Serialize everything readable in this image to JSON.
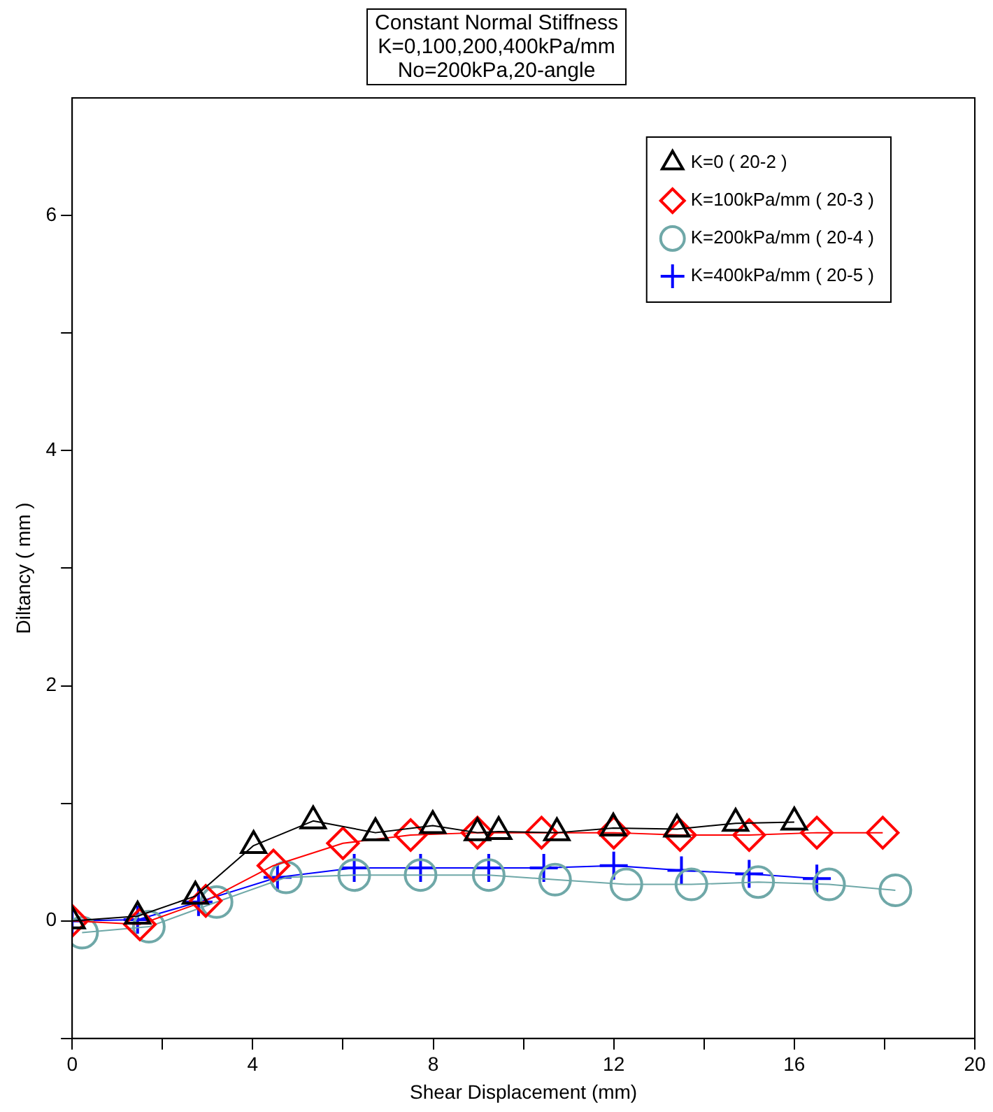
{
  "chart_data": {
    "type": "line",
    "title": "Constant Normal Stiffness\nK=0,100,200,400kPa/mm\nNo=200kPa,20-angle",
    "xlabel": "Shear Displacement (mm)",
    "ylabel": "Diltancy ( mm )",
    "xlim": [
      0,
      20
    ],
    "xticks": [
      0,
      {
        "value": 2,
        "label": null
      },
      4,
      {
        "value": 6,
        "label": null
      },
      8,
      {
        "value": 10,
        "label": null
      },
      12,
      {
        "value": 14,
        "label": null
      },
      16,
      {
        "value": 18,
        "label": null
      },
      20
    ],
    "ylim": [
      -1,
      7
    ],
    "yticks": [
      {
        "value": -1,
        "label": null
      },
      0,
      {
        "value": 1,
        "label": null
      },
      2,
      {
        "value": 3,
        "label": null
      },
      4,
      {
        "value": 5,
        "label": null
      },
      6
    ],
    "grid": false,
    "legend": "top right",
    "line_style": "solid",
    "series": [
      {
        "name": "K=0 ( 20-2 )",
        "color": "#000000",
        "marker": "triangle",
        "x": [
          0,
          1.45,
          2.73,
          4.02,
          5.34,
          6.72,
          7.99,
          8.98,
          9.45,
          10.74,
          11.99,
          13.4,
          14.7,
          16.0
        ],
        "values": [
          0,
          0.04,
          0.21,
          0.64,
          0.85,
          0.75,
          0.81,
          0.75,
          0.76,
          0.75,
          0.79,
          0.78,
          0.83,
          0.84
        ]
      },
      {
        "name": "K=100kPa/mm ( 20-3 )",
        "color": "#ff0000",
        "marker": "diamond",
        "x": [
          0,
          1.5,
          2.96,
          4.46,
          6.0,
          7.5,
          8.98,
          10.4,
          12.0,
          13.47,
          15.0,
          16.5,
          17.96
        ],
        "values": [
          0,
          -0.03,
          0.17,
          0.47,
          0.66,
          0.73,
          0.75,
          0.75,
          0.75,
          0.73,
          0.73,
          0.75,
          0.75
        ]
      },
      {
        "name": "K=200kPa/mm ( 20-4 )",
        "color": "#6fa8a8",
        "marker": "circle",
        "x": [
          0.22,
          1.7,
          3.2,
          4.74,
          6.25,
          7.72,
          9.23,
          10.7,
          12.28,
          13.72,
          15.2,
          16.77,
          18.24
        ],
        "values": [
          -0.1,
          -0.05,
          0.16,
          0.37,
          0.39,
          0.39,
          0.39,
          0.35,
          0.31,
          0.31,
          0.33,
          0.31,
          0.26
        ]
      },
      {
        "name": "K=400kPa/mm ( 20-5 )",
        "color": "#0000ff",
        "marker": "cross",
        "x": [
          0,
          1.45,
          2.8,
          4.55,
          6.25,
          7.72,
          9.23,
          10.45,
          12.0,
          13.5,
          15.0,
          16.5
        ],
        "values": [
          0,
          0.01,
          0.16,
          0.37,
          0.45,
          0.45,
          0.45,
          0.45,
          0.47,
          0.43,
          0.4,
          0.36
        ]
      }
    ]
  }
}
